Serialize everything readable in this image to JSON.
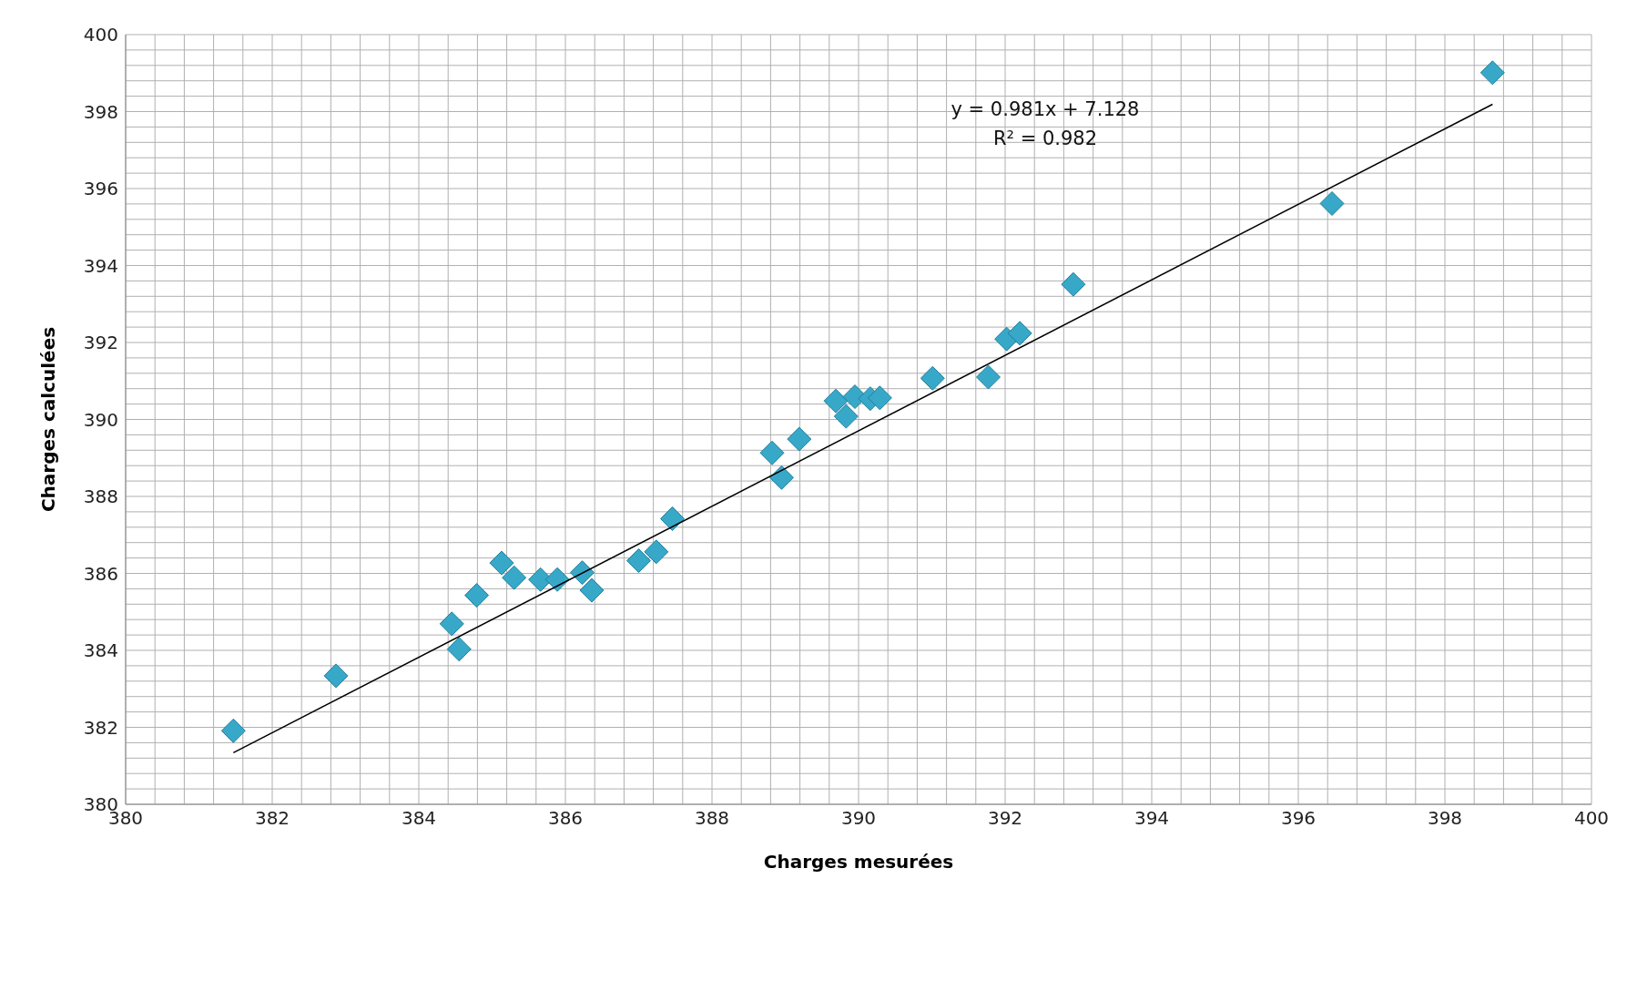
{
  "chart_data": {
    "type": "scatter",
    "xlabel": "Charges mesurées",
    "ylabel": "Charges calculées",
    "xlim": [
      380,
      400
    ],
    "ylim": [
      380,
      400
    ],
    "xticks": [
      380,
      {
        "value": 380.4,
        "label": null
      },
      {
        "value": 380.8,
        "label": null
      },
      {
        "value": 381.2,
        "label": null
      },
      {
        "value": 381.6,
        "label": null
      },
      382,
      {
        "value": 382.4,
        "label": null
      },
      {
        "value": 382.8,
        "label": null
      },
      {
        "value": 383.2,
        "label": null
      },
      {
        "value": 383.6,
        "label": null
      },
      384,
      {
        "value": 384.4,
        "label": null
      },
      {
        "value": 384.8,
        "label": null
      },
      {
        "value": 385.2,
        "label": null
      },
      {
        "value": 385.6,
        "label": null
      },
      386,
      {
        "value": 386.4,
        "label": null
      },
      {
        "value": 386.8,
        "label": null
      },
      {
        "value": 387.2,
        "label": null
      },
      {
        "value": 387.6,
        "label": null
      },
      388,
      {
        "value": 388.4,
        "label": null
      },
      {
        "value": 388.8,
        "label": null
      },
      {
        "value": 389.2,
        "label": null
      },
      {
        "value": 389.6,
        "label": null
      },
      390,
      {
        "value": 390.4,
        "label": null
      },
      {
        "value": 390.8,
        "label": null
      },
      {
        "value": 391.2,
        "label": null
      },
      {
        "value": 391.6,
        "label": null
      },
      392,
      {
        "value": 392.4,
        "label": null
      },
      {
        "value": 392.8,
        "label": null
      },
      {
        "value": 393.2,
        "label": null
      },
      {
        "value": 393.6,
        "label": null
      },
      394,
      {
        "value": 394.4,
        "label": null
      },
      {
        "value": 394.8,
        "label": null
      },
      {
        "value": 395.2,
        "label": null
      },
      {
        "value": 395.6,
        "label": null
      },
      396,
      {
        "value": 396.4,
        "label": null
      },
      {
        "value": 396.8,
        "label": null
      },
      {
        "value": 397.2,
        "label": null
      },
      {
        "value": 397.6,
        "label": null
      },
      398,
      {
        "value": 398.4,
        "label": null
      },
      {
        "value": 398.8,
        "label": null
      },
      {
        "value": 399.2,
        "label": null
      },
      {
        "value": 399.6,
        "label": null
      },
      400
    ],
    "yticks": [
      380,
      {
        "value": 380.4,
        "label": null
      },
      {
        "value": 380.8,
        "label": null
      },
      {
        "value": 381.2,
        "label": null
      },
      {
        "value": 381.6,
        "label": null
      },
      382,
      {
        "value": 382.4,
        "label": null
      },
      {
        "value": 382.8,
        "label": null
      },
      {
        "value": 383.2,
        "label": null
      },
      {
        "value": 383.6,
        "label": null
      },
      384,
      {
        "value": 384.4,
        "label": null
      },
      {
        "value": 384.8,
        "label": null
      },
      {
        "value": 385.2,
        "label": null
      },
      {
        "value": 385.6,
        "label": null
      },
      386,
      {
        "value": 386.4,
        "label": null
      },
      {
        "value": 386.8,
        "label": null
      },
      {
        "value": 387.2,
        "label": null
      },
      {
        "value": 387.6,
        "label": null
      },
      388,
      {
        "value": 388.4,
        "label": null
      },
      {
        "value": 388.8,
        "label": null
      },
      {
        "value": 389.2,
        "label": null
      },
      {
        "value": 389.6,
        "label": null
      },
      390,
      {
        "value": 390.4,
        "label": null
      },
      {
        "value": 390.8,
        "label": null
      },
      {
        "value": 391.2,
        "label": null
      },
      {
        "value": 391.6,
        "label": null
      },
      392,
      {
        "value": 392.4,
        "label": null
      },
      {
        "value": 392.8,
        "label": null
      },
      {
        "value": 393.2,
        "label": null
      },
      {
        "value": 393.6,
        "label": null
      },
      394,
      {
        "value": 394.4,
        "label": null
      },
      {
        "value": 394.8,
        "label": null
      },
      {
        "value": 395.2,
        "label": null
      },
      {
        "value": 395.6,
        "label": null
      },
      396,
      {
        "value": 396.4,
        "label": null
      },
      {
        "value": 396.8,
        "label": null
      },
      {
        "value": 397.2,
        "label": null
      },
      {
        "value": 397.6,
        "label": null
      },
      398,
      {
        "value": 398.4,
        "label": null
      },
      {
        "value": 398.8,
        "label": null
      },
      {
        "value": 399.2,
        "label": null
      },
      {
        "value": 399.6,
        "label": null
      },
      400
    ],
    "grid": true,
    "legend": false,
    "marker": "diamond",
    "annotations": [
      "y = 0.981x + 7.128",
      "R² = 0.982"
    ],
    "series": [
      {
        "color": "#38a8c8",
        "x": [
          381.47,
          382.87,
          384.45,
          384.55,
          384.79,
          385.13,
          385.3,
          385.66,
          385.89,
          386.23,
          386.36,
          387.0,
          387.24,
          387.46,
          388.82,
          388.95,
          389.19,
          389.69,
          389.83,
          389.95,
          390.16,
          390.29,
          391.01,
          391.77,
          392.02,
          392.2,
          392.93,
          396.46,
          398.65
        ],
        "values": [
          381.91,
          383.34,
          384.69,
          384.03,
          385.43,
          386.27,
          385.89,
          385.84,
          385.84,
          386.02,
          385.56,
          386.33,
          386.56,
          387.42,
          389.13,
          388.49,
          389.49,
          390.48,
          390.08,
          390.59,
          390.54,
          390.56,
          391.07,
          391.1,
          392.09,
          392.24,
          393.51,
          395.61,
          399.01
        ]
      },
      {
        "type": "line",
        "color": "#000000",
        "marker": "none",
        "x": [
          381.47,
          398.65
        ],
        "values": [
          381.34,
          398.19
        ]
      }
    ]
  }
}
